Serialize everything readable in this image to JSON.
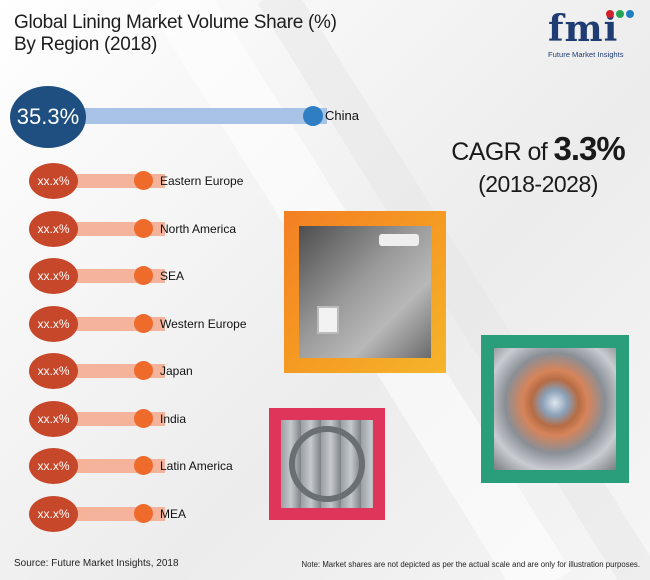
{
  "title": {
    "line1": "Global Lining Market Volume Share (%)",
    "line2": "By Region (2018)"
  },
  "logo": {
    "mark": "fmi",
    "tagline": "Future Market Insights"
  },
  "chart_data": {
    "type": "bar",
    "title": "Global Lining Market Volume Share (%) By Region (2018)",
    "categories": [
      "China",
      "Eastern Europe",
      "North America",
      "SEA",
      "Western Europe",
      "Japan",
      "India",
      "Latin America",
      "MEA"
    ],
    "value_labels": [
      "35.3%",
      "xx.x%",
      "xx.x%",
      "xx.x%",
      "xx.x%",
      "xx.x%",
      "xx.x%",
      "xx.x%",
      "xx.x%"
    ],
    "values": [
      35.3,
      null,
      null,
      null,
      null,
      null,
      null,
      null,
      null
    ]
  },
  "cagr": {
    "prefix": "CAGR of ",
    "value": "3.3%",
    "period": "(2018-2028)"
  },
  "colors": {
    "top_circle": "#1e4f80",
    "top_bar": "#a8c3e6",
    "top_dot": "#2f7ec4",
    "row_circle": "#c7472a",
    "row_bar": "#f4b39a",
    "row_dot": "#ef6b2c"
  },
  "footer": {
    "source": "Source: Future Market Insights, 2018",
    "note": "Note: Market shares are not depicted as per the actual scale and are only for illustration purposes."
  }
}
